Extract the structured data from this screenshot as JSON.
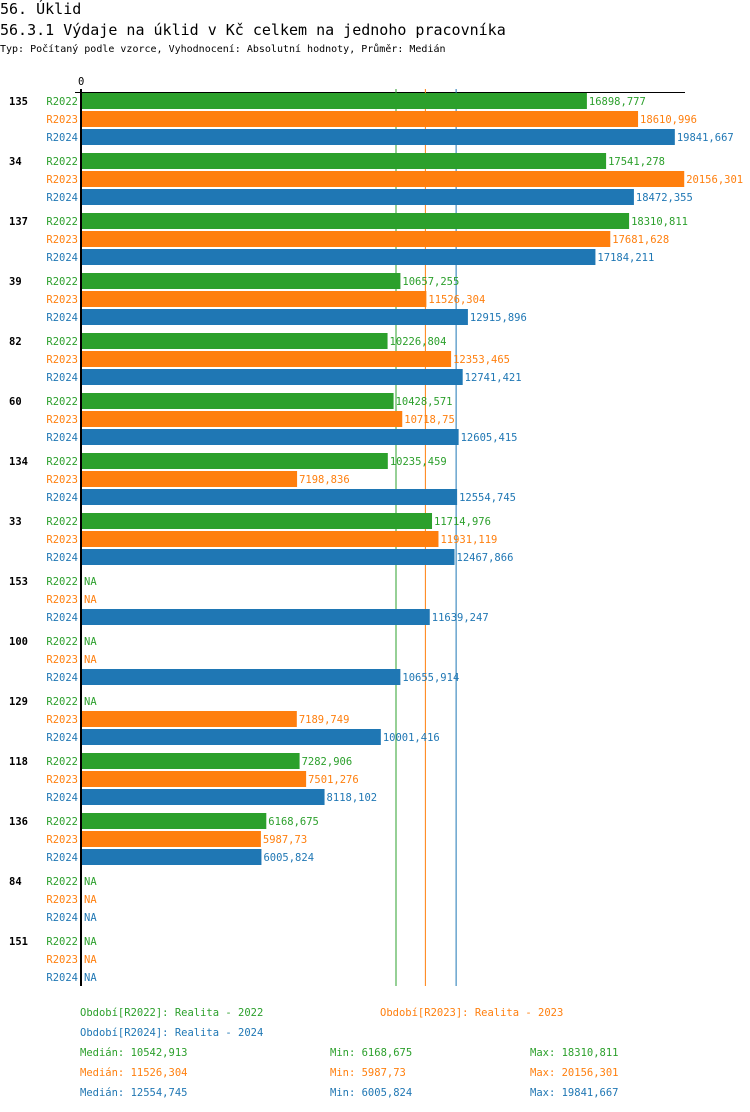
{
  "section_title": "56. Úklid",
  "chart_title": "56.3.1 Výdaje na úklid v Kč celkem na jednoho pracovníka",
  "subtitle": "Typ: Počítaný podle vzorce, Vyhodnocení: Absolutní hodnoty, Průměr: Medián",
  "chart_data": {
    "type": "bar",
    "orientation": "horizontal",
    "title": "56.3.1 Výdaje na úklid v Kč celkem na jednoho pracovníka",
    "x_tick_labels": [
      "0"
    ],
    "xlim": [
      0,
      20156.301
    ],
    "categories": [
      "135",
      "34",
      "137",
      "39",
      "82",
      "60",
      "134",
      "33",
      "153",
      "100",
      "129",
      "118",
      "136",
      "84",
      "151"
    ],
    "series": [
      {
        "name": "R2022",
        "color": "#2ca02c",
        "values": [
          16898.777,
          17541.278,
          18310.811,
          10657.255,
          10226.804,
          10428.571,
          10235.459,
          11714.976,
          null,
          null,
          null,
          7282.906,
          6168.675,
          null,
          null
        ],
        "labels": [
          "16898,777",
          "17541,278",
          "18310,811",
          "10657,255",
          "10226,804",
          "10428,571",
          "10235,459",
          "11714,976",
          "NA",
          "NA",
          "NA",
          "7282,906",
          "6168,675",
          "NA",
          "NA"
        ]
      },
      {
        "name": "R2023",
        "color": "#ff7f0e",
        "values": [
          18610.996,
          20156.301,
          17681.628,
          11526.304,
          12353.465,
          10718.75,
          7198.836,
          11931.119,
          null,
          null,
          7189.749,
          7501.276,
          5987.73,
          null,
          null
        ],
        "labels": [
          "18610,996",
          "20156,301",
          "17681,628",
          "11526,304",
          "12353,465",
          "10718,75",
          "7198,836",
          "11931,119",
          "NA",
          "NA",
          "7189,749",
          "7501,276",
          "5987,73",
          "NA",
          "NA"
        ]
      },
      {
        "name": "R2024",
        "color": "#1f77b4",
        "values": [
          19841.667,
          18472.355,
          17184.211,
          12915.896,
          12741.421,
          12605.415,
          12554.745,
          12467.866,
          11639.247,
          10655.914,
          10001.416,
          8118.102,
          6005.824,
          null,
          null
        ],
        "labels": [
          "19841,667",
          "18472,355",
          "17184,211",
          "12915,896",
          "12741,421",
          "12605,415",
          "12554,745",
          "12467,866",
          "11639,247",
          "10655,914",
          "10001,416",
          "8118,102",
          "6005,824",
          "NA",
          "NA"
        ]
      }
    ],
    "reference_lines": [
      {
        "series": "R2022",
        "type": "median",
        "value": 10542.913
      },
      {
        "series": "R2023",
        "type": "median",
        "value": 11526.304
      },
      {
        "series": "R2024",
        "type": "median",
        "value": 12554.745
      }
    ],
    "legend": {
      "placement": "bottom",
      "periods": [
        "Období[R2022]: Realita - 2022",
        "Období[R2023]: Realita - 2023",
        "Období[R2024]: Realita - 2024"
      ],
      "stats": [
        {
          "median": "Medián: 10542,913",
          "min": "Min: 6168,675",
          "max": "Max: 18310,811"
        },
        {
          "median": "Medián: 11526,304",
          "min": "Min: 5987,73",
          "max": "Max: 20156,301"
        },
        {
          "median": "Medián: 12554,745",
          "min": "Min: 6005,824",
          "max": "Max: 19841,667"
        }
      ]
    }
  }
}
